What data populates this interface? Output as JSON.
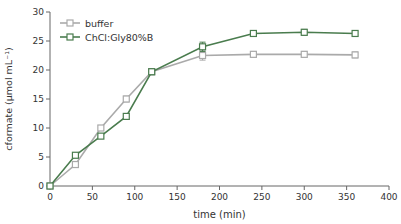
{
  "chart_data": {
    "type": "line",
    "xlabel": "time (min)",
    "ylabel": "cformate (μmol mL⁻¹)",
    "x": [
      0,
      30,
      60,
      90,
      120,
      180,
      240,
      300,
      360
    ],
    "series": [
      {
        "name": "buffer",
        "color": "#aaaaaa",
        "marker": "square",
        "values": [
          0,
          3.7,
          10.0,
          15.0,
          19.7,
          22.5,
          22.7,
          22.7,
          22.6
        ],
        "yerr": [
          0,
          0.3,
          0.4,
          0.5,
          0.4,
          0.8,
          0.5,
          0.5,
          0.5
        ]
      },
      {
        "name": "ChCl:Gly80%B",
        "color": "#4a7c4e",
        "marker": "square",
        "values": [
          0,
          5.3,
          8.6,
          12.0,
          19.7,
          24.0,
          26.3,
          26.5,
          26.3
        ],
        "yerr": [
          0,
          0.3,
          0.3,
          0.5,
          0.5,
          0.8,
          0.4,
          0.5,
          0.4
        ]
      }
    ],
    "xlim": [
      0,
      400
    ],
    "ylim": [
      0,
      30
    ],
    "xticks": [
      0,
      50,
      100,
      150,
      200,
      250,
      300,
      350,
      400
    ],
    "yticks": [
      0,
      5,
      10,
      15,
      20,
      25,
      30
    ],
    "grid": false,
    "legend": "upper left"
  }
}
